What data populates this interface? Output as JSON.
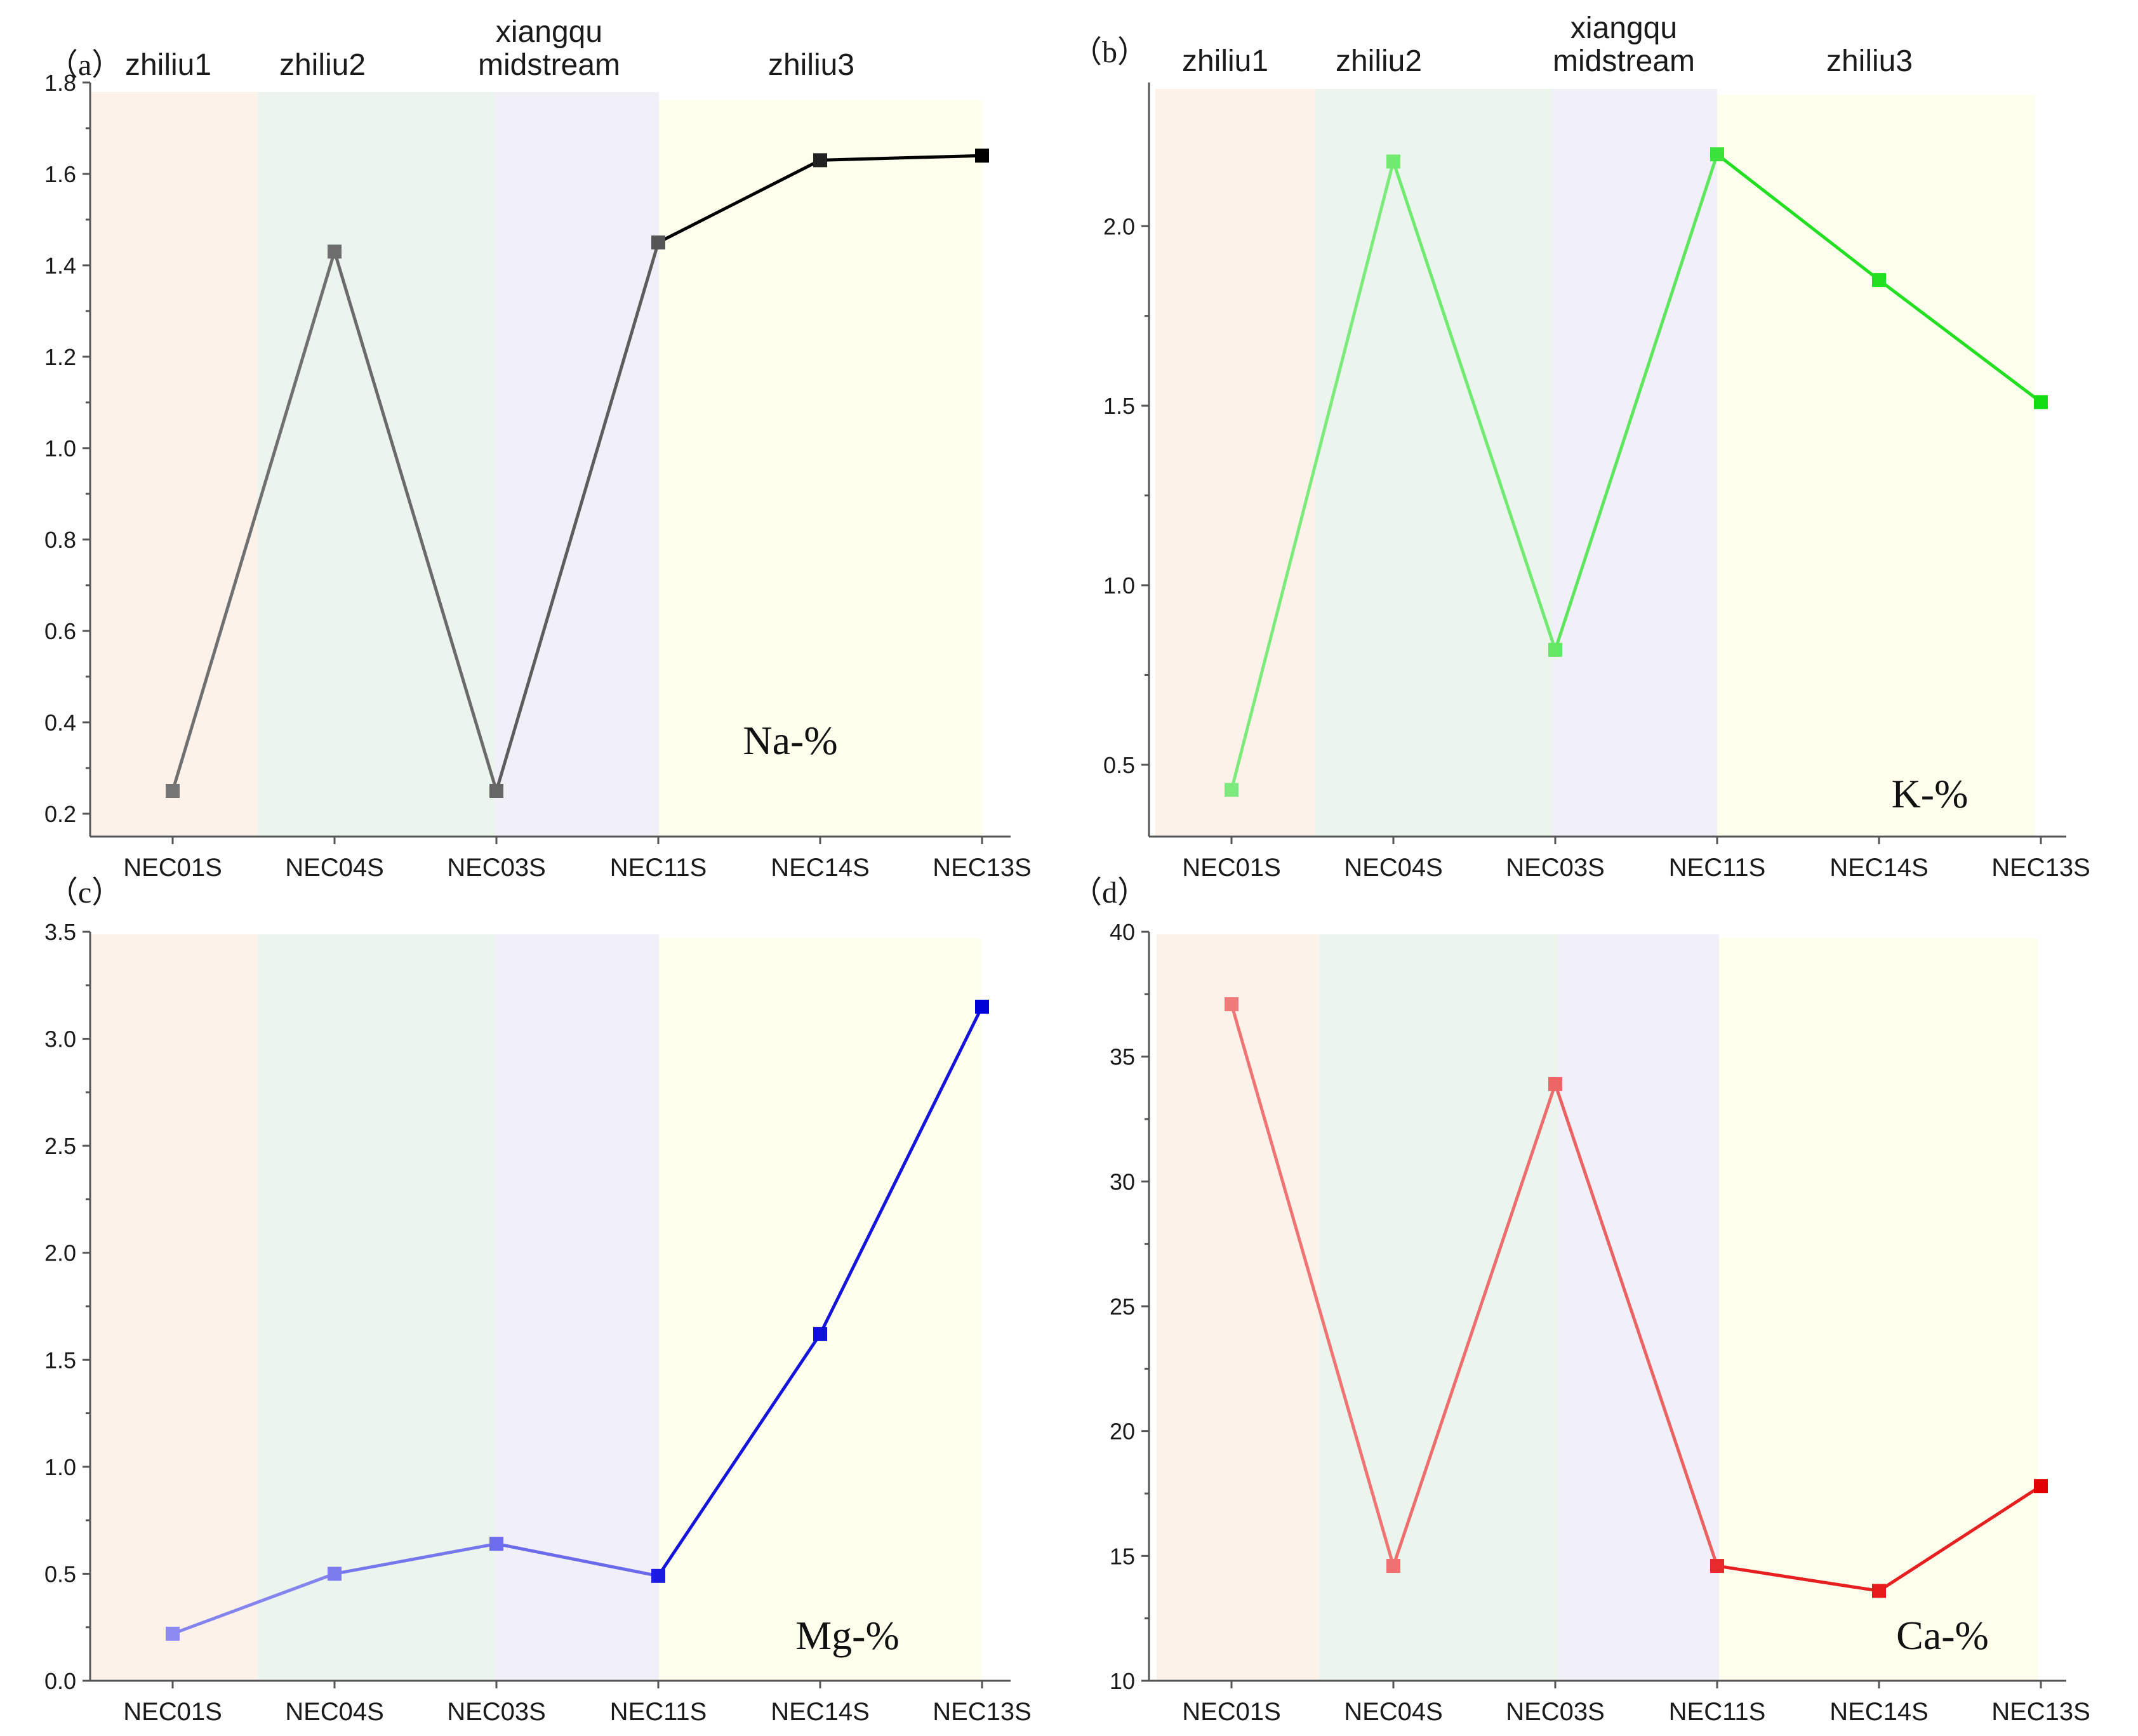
{
  "figure": {
    "regions": [
      {
        "key": "zhiliu1",
        "label": "zhiliu1",
        "color": "#fdf2ea"
      },
      {
        "key": "zhiliu2",
        "label": "zhiliu2",
        "color": "#ebf5ee"
      },
      {
        "key": "xiangqu",
        "label": "xiangqu\nmidstream",
        "color": "#f1eff8"
      },
      {
        "key": "zhiliu3",
        "label": "zhiliu3",
        "color": "#fefeec"
      }
    ]
  },
  "chart_data": [
    {
      "id": "a",
      "panel_label": "（a）",
      "type": "line",
      "categories": [
        "NEC01S",
        "NEC04S",
        "NEC03S",
        "NEC11S",
        "NEC14S",
        "NEC13S"
      ],
      "values": [
        0.25,
        1.43,
        0.25,
        1.45,
        1.63,
        1.64
      ],
      "series_label": "Na-%",
      "ylim": [
        0.15,
        1.8
      ],
      "yticks": [
        0.2,
        0.4,
        0.6,
        0.8,
        1.0,
        1.2,
        1.4,
        1.6,
        1.8
      ],
      "ytick_labels": [
        "0.2",
        "0.4",
        "0.6",
        "0.8",
        "1.0",
        "1.2",
        "1.4",
        "1.6",
        "1.8"
      ],
      "point_colors": [
        "#757575",
        "#6e6e6e",
        "#666666",
        "#555555",
        "#222222",
        "#000000"
      ],
      "segment_colors": [
        "#707070",
        "#6a6a6a",
        "#5d5d5d",
        "#000000",
        "#000000"
      ],
      "show_region_labels": true,
      "xlabel": "",
      "ylabel": ""
    },
    {
      "id": "b",
      "panel_label": "（b）",
      "type": "line",
      "categories": [
        "NEC01S",
        "NEC04S",
        "NEC03S",
        "NEC11S",
        "NEC14S",
        "NEC13S"
      ],
      "values": [
        0.43,
        2.18,
        0.82,
        2.2,
        1.85,
        1.51
      ],
      "series_label": "K-%",
      "ylim": [
        0.3,
        2.4
      ],
      "yticks": [
        0.5,
        1.0,
        1.5,
        2.0
      ],
      "ytick_labels": [
        "0.5",
        "1.0",
        "1.5",
        "2.0"
      ],
      "point_colors": [
        "#7cea7c",
        "#72ea72",
        "#63e863",
        "#3ce23c",
        "#22df22",
        "#11de11"
      ],
      "segment_colors": [
        "#7ceb7c",
        "#70ea70",
        "#5ee65e",
        "#22df22",
        "#22df22"
      ],
      "show_region_labels": true,
      "xlabel": "",
      "ylabel": ""
    },
    {
      "id": "c",
      "panel_label": "（c）",
      "type": "line",
      "categories": [
        "NEC01S",
        "NEC04S",
        "NEC03S",
        "NEC11S",
        "NEC14S",
        "NEC13S"
      ],
      "values": [
        0.22,
        0.5,
        0.64,
        0.49,
        1.62,
        3.15
      ],
      "series_label": "Mg-%",
      "ylim": [
        0.0,
        3.5
      ],
      "yticks": [
        0.0,
        0.5,
        1.0,
        1.5,
        2.0,
        2.5,
        3.0,
        3.5
      ],
      "ytick_labels": [
        "0.0",
        "0.5",
        "1.0",
        "1.5",
        "2.0",
        "2.5",
        "3.0",
        "3.5"
      ],
      "point_colors": [
        "#8a8af0",
        "#7c7cee",
        "#6c6cec",
        "#1a1ae0",
        "#1010dd",
        "#0000d8"
      ],
      "segment_colors": [
        "#8484ef",
        "#7676ed",
        "#6a6aeb",
        "#1414dd",
        "#1414dd"
      ],
      "show_region_labels": false,
      "xlabel": "",
      "ylabel": ""
    },
    {
      "id": "d",
      "panel_label": "（d）",
      "type": "line",
      "categories": [
        "NEC01S",
        "NEC04S",
        "NEC03S",
        "NEC11S",
        "NEC14S",
        "NEC13S"
      ],
      "values": [
        37.1,
        14.6,
        33.9,
        14.6,
        13.6,
        17.8
      ],
      "series_label": "Ca-%",
      "ylim": [
        10,
        40
      ],
      "yticks": [
        10,
        15,
        20,
        25,
        30,
        35,
        40
      ],
      "ytick_labels": [
        "10",
        "15",
        "20",
        "25",
        "30",
        "35",
        "40"
      ],
      "point_colors": [
        "#f07a7a",
        "#ee7070",
        "#ec6666",
        "#e82a2a",
        "#e61a1a",
        "#e30000"
      ],
      "segment_colors": [
        "#f07474",
        "#ee6e6e",
        "#eb6262",
        "#e62020",
        "#e62020"
      ],
      "show_region_labels": false,
      "xlabel": "",
      "ylabel": ""
    }
  ]
}
